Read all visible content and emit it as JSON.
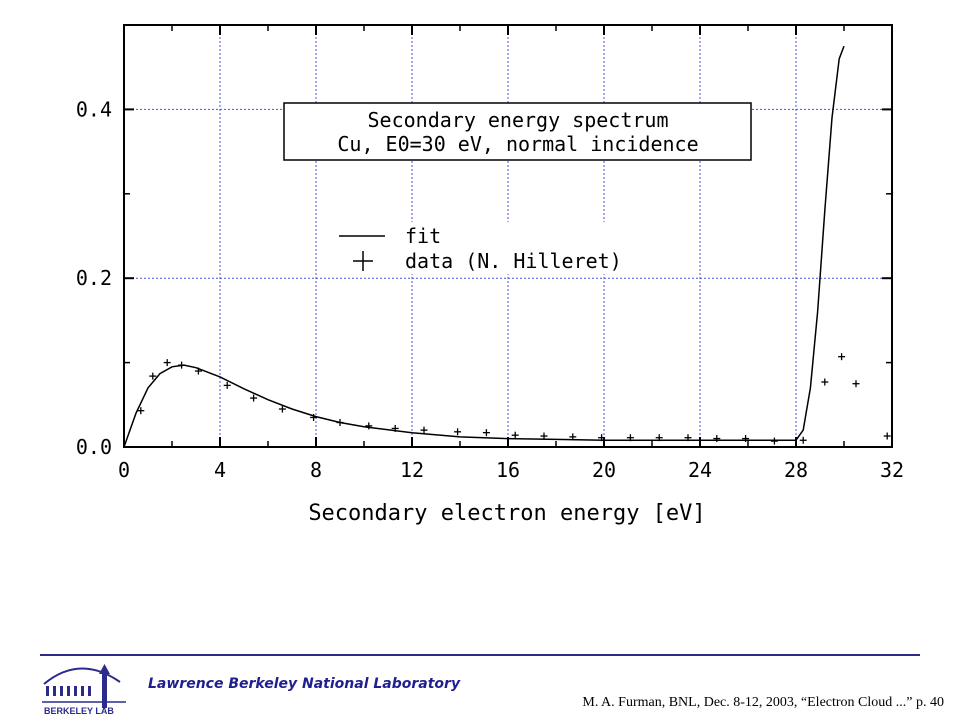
{
  "chart_data": {
    "type": "line",
    "title": "Secondary energy spectrum",
    "subtitle": "Cu, E0=30 eV, normal incidence",
    "xlabel": "Secondary electron energy [eV]",
    "ylabel": "",
    "xlim": [
      0,
      32
    ],
    "ylim": [
      0,
      0.5
    ],
    "xticks": [
      0,
      4,
      8,
      12,
      16,
      20,
      24,
      28,
      32
    ],
    "xtick_labels": [
      "0",
      "4",
      "8",
      "12",
      "16",
      "20",
      "24",
      "28",
      "32"
    ],
    "yticks": [
      0.0,
      0.2,
      0.4
    ],
    "ytick_labels": [
      "0.0",
      "0.2",
      "0.4"
    ],
    "grid": true,
    "legend_position": "center",
    "series": [
      {
        "name": "fit",
        "style": "line",
        "x": [
          0,
          0.5,
          1,
          1.5,
          2,
          2.5,
          3,
          4,
          5,
          6,
          7,
          8,
          9,
          10,
          12,
          14,
          16,
          18,
          20,
          22,
          24,
          26,
          28,
          28.3,
          28.6,
          28.9,
          29.2,
          29.5,
          29.8,
          30.0
        ],
        "y": [
          0,
          0.04,
          0.07,
          0.087,
          0.095,
          0.097,
          0.094,
          0.083,
          0.069,
          0.056,
          0.045,
          0.036,
          0.029,
          0.024,
          0.017,
          0.012,
          0.01,
          0.009,
          0.008,
          0.008,
          0.008,
          0.008,
          0.008,
          0.02,
          0.07,
          0.16,
          0.28,
          0.39,
          0.46,
          0.475
        ]
      },
      {
        "name": "data (N. Hilleret)",
        "style": "plus",
        "x": [
          0.7,
          1.2,
          1.8,
          2.4,
          3.1,
          4.3,
          5.4,
          6.6,
          7.9,
          9.0,
          10.2,
          11.3,
          12.5,
          13.9,
          15.1,
          16.3,
          17.5,
          18.7,
          19.9,
          21.1,
          22.3,
          23.5,
          24.7,
          25.9,
          27.1,
          28.3,
          29.2,
          29.9,
          30.5,
          31.8
        ],
        "y": [
          0.043,
          0.084,
          0.1,
          0.097,
          0.09,
          0.073,
          0.058,
          0.045,
          0.035,
          0.029,
          0.025,
          0.022,
          0.02,
          0.018,
          0.017,
          0.014,
          0.013,
          0.012,
          0.011,
          0.011,
          0.011,
          0.011,
          0.01,
          0.01,
          0.007,
          0.008,
          0.077,
          0.107,
          0.075,
          0.013
        ]
      }
    ]
  },
  "colors": {
    "grid": "#4a52e8",
    "axis": "#000000",
    "footer_rule": "#2b2b8c",
    "lab_text": "#1f1f8f"
  },
  "footer": {
    "lab_name": "Lawrence Berkeley National Laboratory",
    "citation": "M. A. Furman, BNL, Dec. 8-12, 2003, “Electron Cloud ...”  p. 40",
    "logo_text": "BERKELEY LAB",
    "logo_icon": "berkeley-lab-logo"
  }
}
